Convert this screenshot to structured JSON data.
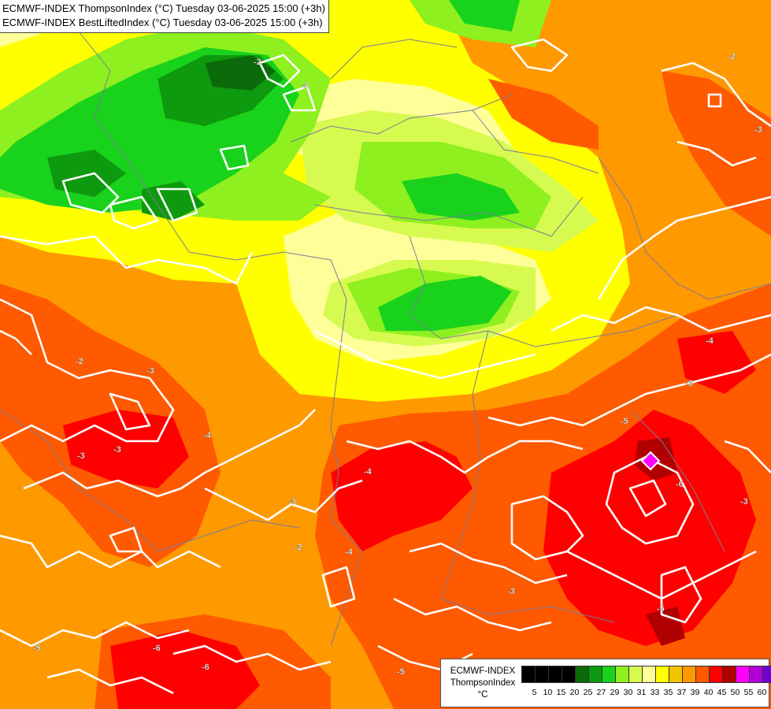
{
  "title": {
    "line1": "ECMWF-INDEX ThompsonIndex (°C) Tuesday 03-06-2025 15:00 (+3h)",
    "line2": "ECMWF-INDEX BestLiftedIndex (°C) Tuesday 03-06-2025 15:00 (+3h)"
  },
  "legend": {
    "line1": "ECMWF-INDEX",
    "line2": "ThompsonIndex",
    "line3": "°C",
    "bins": [
      {
        "label": "5",
        "color": "#000000"
      },
      {
        "label": "10",
        "color": "#000000"
      },
      {
        "label": "15",
        "color": "#000000"
      },
      {
        "label": "20",
        "color": "#000000"
      },
      {
        "label": "25",
        "color": "#0b6b0b"
      },
      {
        "label": "27",
        "color": "#0e9a0e"
      },
      {
        "label": "29",
        "color": "#19d21c"
      },
      {
        "label": "30",
        "color": "#8ef01e"
      },
      {
        "label": "31",
        "color": "#d6fa50"
      },
      {
        "label": "33",
        "color": "#ffff99"
      },
      {
        "label": "35",
        "color": "#ffff00"
      },
      {
        "label": "37",
        "color": "#f2c400"
      },
      {
        "label": "39",
        "color": "#ff9900"
      },
      {
        "label": "40",
        "color": "#ff5a00"
      },
      {
        "label": "45",
        "color": "#ff0000"
      },
      {
        "label": "50",
        "color": "#b00000"
      },
      {
        "label": "55",
        "color": "#ff00ff"
      },
      {
        "label": "60",
        "color": "#b000d8"
      },
      {
        "label": "",
        "color": "#7000d8"
      },
      {
        "label": "",
        "color": "#2000ff"
      }
    ]
  },
  "lifted_index_labels": [
    "-2",
    "-2",
    "-2",
    "-2",
    "-3",
    "-3",
    "-3",
    "-4",
    "-4",
    "-4",
    "-5",
    "-5",
    "-5",
    "-6",
    "-6",
    "-3",
    "-2",
    "-4",
    "-3",
    "-5",
    "-3",
    "-6",
    "-3",
    "-3"
  ]
}
